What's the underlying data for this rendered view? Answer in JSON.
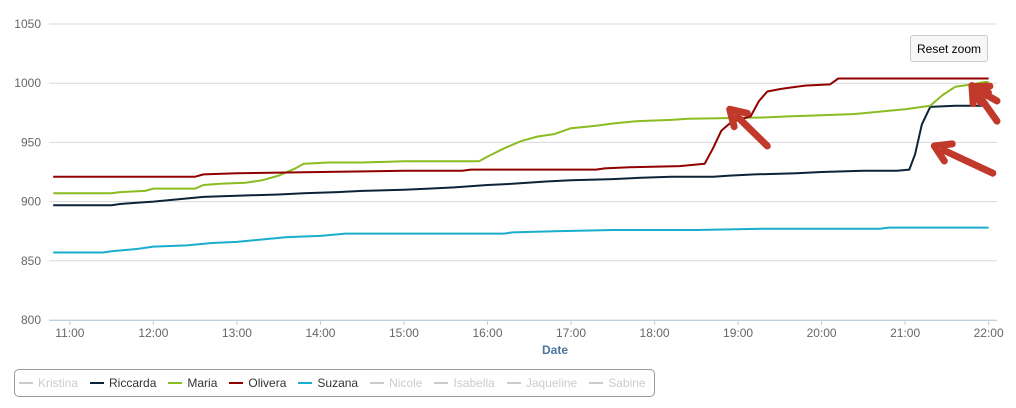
{
  "reset_zoom_label": "Reset zoom",
  "chart_data": {
    "type": "line",
    "xlabel": "Date",
    "ylabel": "",
    "ylim": [
      800,
      1050
    ],
    "yticks": [
      800,
      850,
      900,
      950,
      1000,
      1050
    ],
    "xlim": [
      10.75,
      22.1
    ],
    "xticks": [
      11,
      12,
      13,
      14,
      15,
      16,
      17,
      18,
      19,
      20,
      21,
      22
    ],
    "xtick_labels": [
      "11:00",
      "12:00",
      "13:00",
      "14:00",
      "15:00",
      "16:00",
      "17:00",
      "18:00",
      "19:00",
      "20:00",
      "21:00",
      "22:00"
    ],
    "grid": "horizontal",
    "legend_position": "bottom-left",
    "series": [
      {
        "name": "Kristina",
        "color": "#cccccc",
        "visible": false,
        "points": []
      },
      {
        "name": "Riccarda",
        "color": "#0d233a",
        "visible": true,
        "points": [
          [
            10.8,
            897
          ],
          [
            11.5,
            897
          ],
          [
            11.6,
            898
          ],
          [
            11.8,
            899
          ],
          [
            12.0,
            900
          ],
          [
            12.3,
            902
          ],
          [
            12.6,
            904
          ],
          [
            13.0,
            905
          ],
          [
            13.5,
            906
          ],
          [
            13.8,
            907
          ],
          [
            14.2,
            908
          ],
          [
            14.5,
            909
          ],
          [
            15.0,
            910
          ],
          [
            15.3,
            911
          ],
          [
            15.6,
            912
          ],
          [
            16.0,
            914
          ],
          [
            16.3,
            915
          ],
          [
            16.7,
            917
          ],
          [
            17.0,
            918
          ],
          [
            17.5,
            919
          ],
          [
            17.8,
            920
          ],
          [
            18.2,
            921
          ],
          [
            18.7,
            921
          ],
          [
            18.9,
            922
          ],
          [
            19.2,
            923
          ],
          [
            19.7,
            924
          ],
          [
            20.0,
            925
          ],
          [
            20.5,
            926
          ],
          [
            20.9,
            926
          ],
          [
            21.05,
            927
          ],
          [
            21.12,
            940
          ],
          [
            21.2,
            965
          ],
          [
            21.3,
            980
          ],
          [
            21.6,
            981
          ],
          [
            22.0,
            981
          ]
        ]
      },
      {
        "name": "Maria",
        "color": "#8bbc21",
        "visible": true,
        "points": [
          [
            10.8,
            907
          ],
          [
            11.5,
            907
          ],
          [
            11.6,
            908
          ],
          [
            11.9,
            909
          ],
          [
            12.0,
            911
          ],
          [
            12.5,
            911
          ],
          [
            12.6,
            914
          ],
          [
            12.8,
            915
          ],
          [
            13.1,
            916
          ],
          [
            13.3,
            918
          ],
          [
            13.5,
            922
          ],
          [
            13.7,
            928
          ],
          [
            13.8,
            932
          ],
          [
            14.1,
            933
          ],
          [
            14.5,
            933
          ],
          [
            15.0,
            934
          ],
          [
            15.9,
            934
          ],
          [
            16.0,
            938
          ],
          [
            16.2,
            945
          ],
          [
            16.4,
            951
          ],
          [
            16.6,
            955
          ],
          [
            16.8,
            957
          ],
          [
            17.0,
            962
          ],
          [
            17.3,
            964
          ],
          [
            17.5,
            966
          ],
          [
            17.8,
            968
          ],
          [
            18.2,
            969
          ],
          [
            18.4,
            970
          ],
          [
            19.3,
            971
          ],
          [
            19.6,
            972
          ],
          [
            20.0,
            973
          ],
          [
            20.4,
            974
          ],
          [
            20.7,
            976
          ],
          [
            21.0,
            978
          ],
          [
            21.3,
            981
          ],
          [
            21.45,
            990
          ],
          [
            21.6,
            997
          ],
          [
            21.8,
            999
          ],
          [
            21.95,
            1001
          ],
          [
            22.0,
            1001
          ]
        ]
      },
      {
        "name": "Olivera",
        "color": "#910000",
        "visible": true,
        "points": [
          [
            10.8,
            921
          ],
          [
            12.5,
            921
          ],
          [
            12.6,
            923
          ],
          [
            13.0,
            924
          ],
          [
            14.0,
            925
          ],
          [
            15.0,
            926
          ],
          [
            15.7,
            926
          ],
          [
            15.8,
            927
          ],
          [
            16.5,
            927
          ],
          [
            17.3,
            927
          ],
          [
            17.4,
            928
          ],
          [
            17.7,
            929
          ],
          [
            18.3,
            930
          ],
          [
            18.6,
            932
          ],
          [
            18.7,
            945
          ],
          [
            18.8,
            960
          ],
          [
            18.9,
            966
          ],
          [
            19.0,
            969
          ],
          [
            19.15,
            972
          ],
          [
            19.25,
            985
          ],
          [
            19.35,
            993
          ],
          [
            19.5,
            995
          ],
          [
            19.6,
            996
          ],
          [
            19.8,
            998
          ],
          [
            20.1,
            999
          ],
          [
            20.2,
            1004
          ],
          [
            20.5,
            1004
          ],
          [
            22.0,
            1004
          ]
        ]
      },
      {
        "name": "Suzana",
        "color": "#1aadce",
        "visible": true,
        "points": [
          [
            10.8,
            857
          ],
          [
            11.4,
            857
          ],
          [
            11.5,
            858
          ],
          [
            11.8,
            860
          ],
          [
            12.0,
            862
          ],
          [
            12.4,
            863
          ],
          [
            12.7,
            865
          ],
          [
            13.0,
            866
          ],
          [
            13.3,
            868
          ],
          [
            13.6,
            870
          ],
          [
            14.0,
            871
          ],
          [
            14.3,
            873
          ],
          [
            15.0,
            873
          ],
          [
            16.2,
            873
          ],
          [
            16.3,
            874
          ],
          [
            16.8,
            875
          ],
          [
            17.5,
            876
          ],
          [
            18.5,
            876
          ],
          [
            19.3,
            877
          ],
          [
            20.0,
            877
          ],
          [
            20.7,
            877
          ],
          [
            20.8,
            878
          ],
          [
            22.0,
            878
          ]
        ]
      },
      {
        "name": "Nicole",
        "color": "#cccccc",
        "visible": false,
        "points": []
      },
      {
        "name": "Isabella",
        "color": "#cccccc",
        "visible": false,
        "points": []
      },
      {
        "name": "Jaqueline",
        "color": "#cccccc",
        "visible": false,
        "points": []
      },
      {
        "name": "Sabine",
        "color": "#cccccc",
        "visible": false,
        "points": []
      }
    ],
    "annotations": [
      {
        "type": "arrow",
        "color": "#c0392b",
        "from": [
          19.35,
          947
        ],
        "to": [
          18.9,
          978
        ]
      },
      {
        "type": "arrow",
        "color": "#c0392b",
        "from": [
          22.05,
          924
        ],
        "to": [
          21.35,
          947
        ]
      },
      {
        "type": "arrow",
        "color": "#c0392b",
        "from": [
          22.1,
          968
        ],
        "to": [
          21.8,
          998
        ]
      },
      {
        "type": "arrow",
        "color": "#c0392b",
        "from": [
          22.1,
          985
        ],
        "to": [
          21.8,
          997
        ]
      }
    ]
  }
}
